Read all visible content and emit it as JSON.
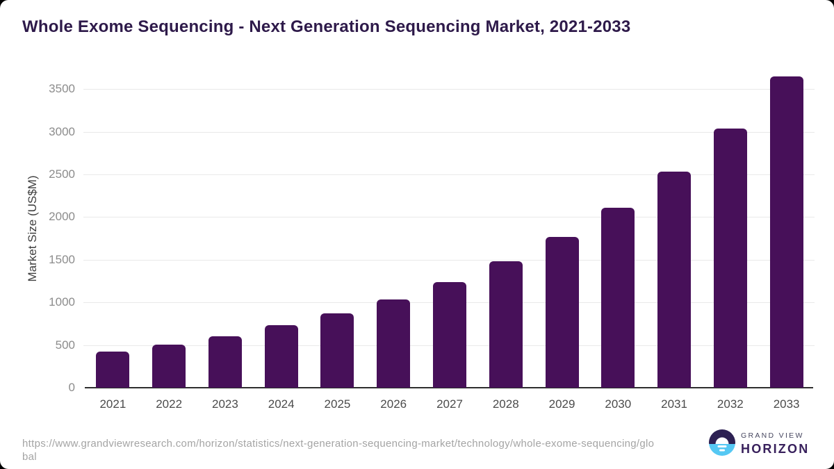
{
  "title": "Whole Exome Sequencing - Next Generation Sequencing Market, 2021-2033",
  "chart_data": {
    "type": "bar",
    "title": "Whole Exome Sequencing - Next Generation Sequencing Market, 2021-2033",
    "categories": [
      "2021",
      "2022",
      "2023",
      "2024",
      "2025",
      "2026",
      "2027",
      "2028",
      "2029",
      "2030",
      "2031",
      "2032",
      "2033"
    ],
    "values": [
      420,
      505,
      605,
      730,
      870,
      1035,
      1235,
      1480,
      1765,
      2110,
      2530,
      3035,
      3645
    ],
    "xlabel": "",
    "ylabel": "Market Size (US$M)",
    "ylim": [
      0,
      3730
    ],
    "yticks": [
      0,
      500,
      1000,
      1500,
      2000,
      2500,
      3000,
      3500
    ],
    "grid": true,
    "legend": false,
    "bar_color": "#471059"
  },
  "footer": {
    "source_url": "https://www.grandviewresearch.com/horizon/statistics/next-generation-sequencing-market/technology/whole-exome-sequencing/global",
    "logo": {
      "top_text": "GRAND VIEW",
      "bottom_text": "HORIZON"
    }
  },
  "colors": {
    "title": "#2e1a4a",
    "bar": "#471059",
    "gridline": "#e9e9e9",
    "axis_line": "#2e2e2e",
    "ytick_label": "#8c8c8c",
    "xtick_label": "#4b4b4b",
    "axis_title": "#3d3d3d",
    "source_text": "#a4a4a4",
    "logo_dark": "#2d2153",
    "logo_blue": "#55c8f3",
    "logo_horizon_text": "#38205c"
  }
}
